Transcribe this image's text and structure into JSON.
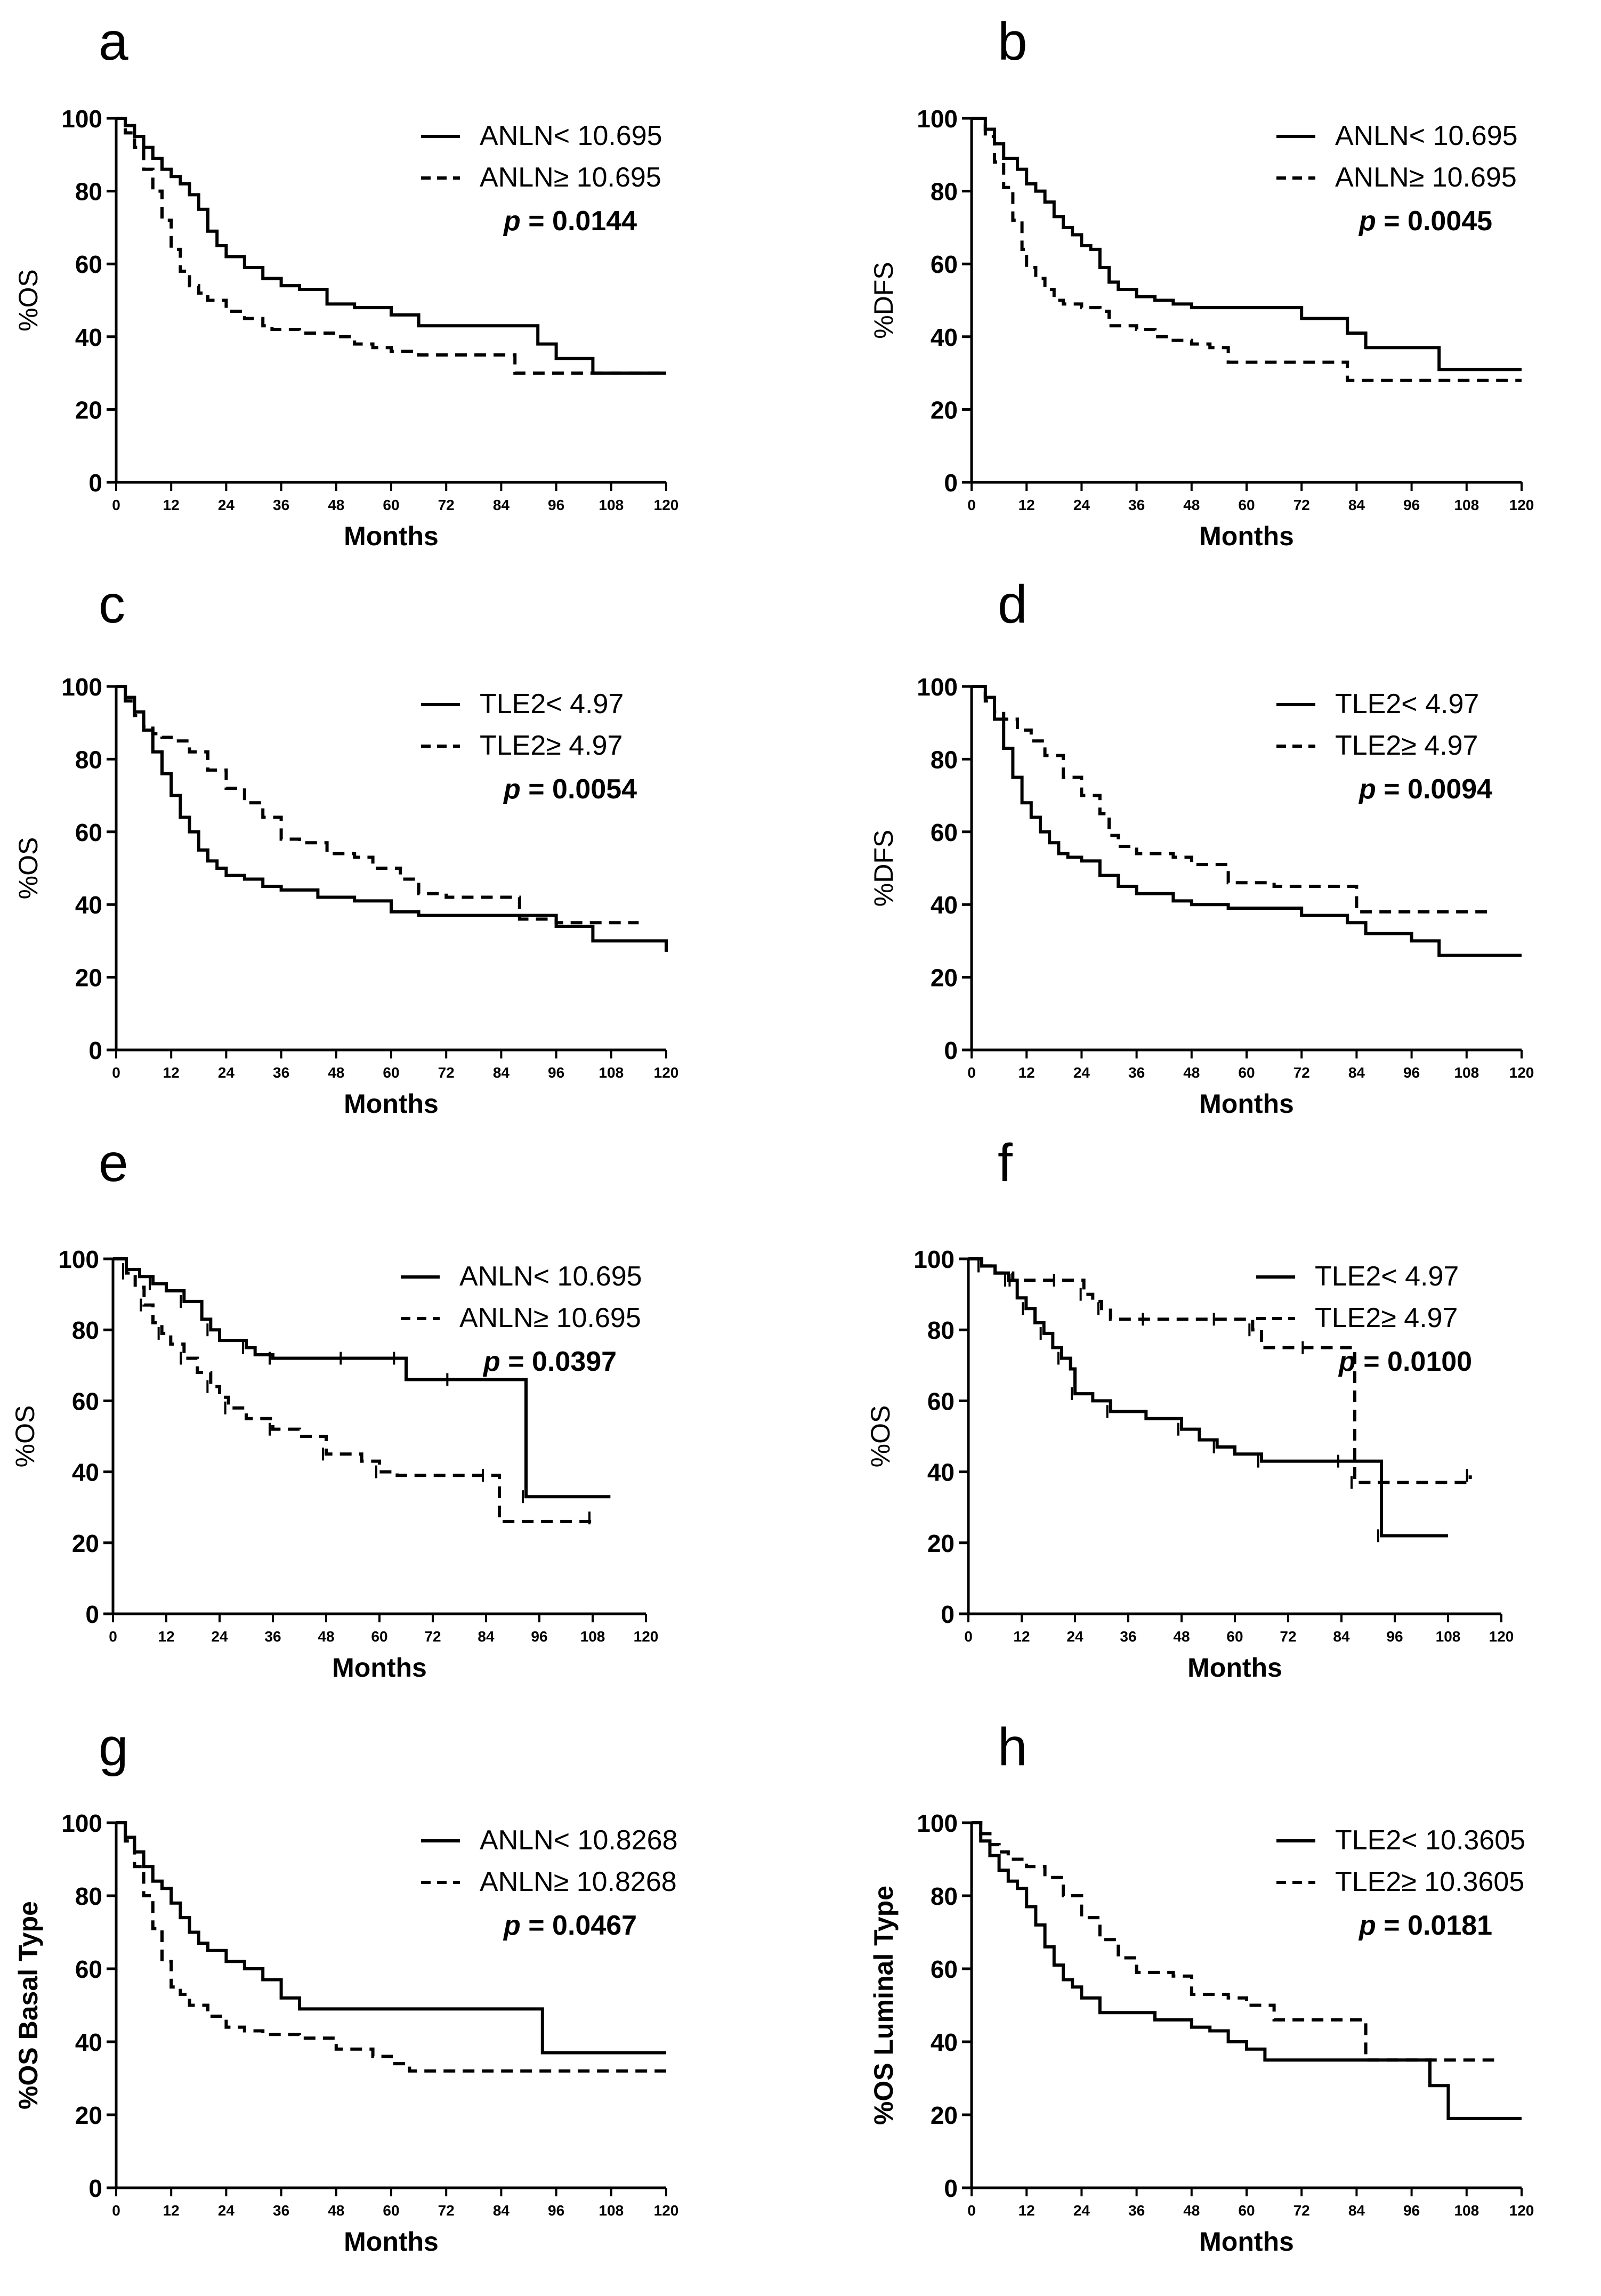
{
  "chart_data": [
    {
      "type": "line",
      "panel": "a",
      "title": "",
      "xlabel": "Months",
      "ylabel": "%OS",
      "ylabel_bold": false,
      "xlim": [
        0,
        120
      ],
      "ylim": [
        0,
        100
      ],
      "xticks": [
        "0",
        "12",
        "24",
        "36",
        "48",
        "60",
        "72",
        "84",
        "96",
        "108",
        "120"
      ],
      "yticks": [
        "0",
        "20",
        "40",
        "60",
        "80",
        "100"
      ],
      "pvalue": "= 0.0144",
      "censor_marks": false,
      "series": [
        {
          "name": "ANLN< 10.695",
          "style": "solid",
          "x": [
            0,
            2,
            4,
            6,
            8,
            10,
            12,
            14,
            16,
            18,
            20,
            22,
            24,
            28,
            32,
            36,
            40,
            46,
            52,
            60,
            66,
            92,
            96,
            104,
            120
          ],
          "y": [
            100,
            98,
            95,
            92,
            89,
            86,
            84,
            82,
            79,
            75,
            69,
            65,
            62,
            59,
            56,
            54,
            53,
            49,
            48,
            46,
            43,
            38,
            34,
            30,
            30
          ]
        },
        {
          "name": "ANLN≥ 10.695",
          "style": "dashed",
          "x": [
            0,
            2,
            4,
            6,
            8,
            10,
            12,
            14,
            16,
            18,
            20,
            24,
            28,
            32,
            34,
            40,
            48,
            52,
            56,
            60,
            66,
            72,
            80,
            87,
            120
          ],
          "y": [
            100,
            96,
            92,
            86,
            80,
            72,
            64,
            58,
            54,
            52,
            50,
            47,
            45,
            43,
            42,
            41,
            40,
            38,
            37,
            36,
            35,
            35,
            35,
            30,
            30
          ]
        }
      ]
    },
    {
      "type": "line",
      "panel": "b",
      "title": "",
      "xlabel": "Months",
      "ylabel": "%DFS",
      "ylabel_bold": false,
      "xlim": [
        0,
        120
      ],
      "ylim": [
        0,
        100
      ],
      "xticks": [
        "0",
        "12",
        "24",
        "36",
        "48",
        "60",
        "72",
        "84",
        "96",
        "108",
        "120"
      ],
      "yticks": [
        "0",
        "20",
        "40",
        "60",
        "80",
        "100"
      ],
      "pvalue": "= 0.0045",
      "censor_marks": false,
      "series": [
        {
          "name": "ANLN< 10.695",
          "style": "solid",
          "x": [
            0,
            3,
            5,
            7,
            10,
            12,
            14,
            16,
            18,
            20,
            22,
            24,
            26,
            28,
            30,
            32,
            36,
            40,
            44,
            48,
            58,
            66,
            72,
            82,
            86,
            96,
            102,
            120
          ],
          "y": [
            100,
            97,
            93,
            89,
            86,
            82,
            80,
            77,
            73,
            70,
            68,
            65,
            64,
            59,
            55,
            53,
            51,
            50,
            49,
            48,
            48,
            48,
            45,
            41,
            37,
            37,
            31,
            31
          ]
        },
        {
          "name": "ANLN≥ 10.695",
          "style": "dashed",
          "x": [
            0,
            3,
            5,
            7,
            9,
            11,
            12,
            14,
            16,
            18,
            20,
            24,
            28,
            30,
            36,
            40,
            44,
            48,
            52,
            56,
            66,
            72,
            82,
            120
          ],
          "y": [
            100,
            95,
            88,
            81,
            72,
            64,
            59,
            56,
            53,
            50,
            49,
            48,
            47,
            43,
            42,
            40,
            39,
            38,
            37,
            33,
            33,
            33,
            28,
            28
          ]
        }
      ]
    },
    {
      "type": "line",
      "panel": "c",
      "title": "",
      "xlabel": "Months",
      "ylabel": "%OS",
      "ylabel_bold": false,
      "xlim": [
        0,
        120
      ],
      "ylim": [
        0,
        100
      ],
      "xticks": [
        "0",
        "12",
        "24",
        "36",
        "48",
        "60",
        "72",
        "84",
        "96",
        "108",
        "120"
      ],
      "yticks": [
        "0",
        "20",
        "40",
        "60",
        "80",
        "100"
      ],
      "pvalue": "= 0.0054",
      "censor_marks": false,
      "series": [
        {
          "name": "TLE2< 4.97",
          "style": "solid",
          "x": [
            0,
            2,
            4,
            6,
            8,
            10,
            12,
            14,
            16,
            18,
            20,
            22,
            24,
            28,
            32,
            36,
            44,
            52,
            60,
            66,
            90,
            96,
            104,
            120
          ],
          "y": [
            100,
            97,
            93,
            88,
            82,
            76,
            70,
            64,
            60,
            55,
            52,
            50,
            48,
            47,
            45,
            44,
            42,
            41,
            38,
            37,
            37,
            34,
            30,
            27
          ]
        },
        {
          "name": "TLE2≥ 4.97",
          "style": "dashed",
          "x": [
            0,
            2,
            4,
            6,
            8,
            10,
            12,
            16,
            20,
            24,
            28,
            32,
            36,
            40,
            46,
            52,
            56,
            62,
            66,
            72,
            86,
            88,
            96,
            114
          ],
          "y": [
            100,
            96,
            92,
            89,
            87,
            86,
            85,
            82,
            77,
            72,
            68,
            64,
            58,
            57,
            54,
            53,
            50,
            47,
            43,
            42,
            42,
            36,
            35,
            35
          ]
        }
      ]
    },
    {
      "type": "line",
      "panel": "d",
      "title": "",
      "xlabel": "Months",
      "ylabel": "%DFS",
      "ylabel_bold": false,
      "xlim": [
        0,
        120
      ],
      "ylim": [
        0,
        100
      ],
      "xticks": [
        "0",
        "12",
        "24",
        "36",
        "48",
        "60",
        "72",
        "84",
        "96",
        "108",
        "120"
      ],
      "yticks": [
        "0",
        "20",
        "40",
        "60",
        "80",
        "100"
      ],
      "pvalue": "= 0.0094",
      "censor_marks": false,
      "series": [
        {
          "name": "TLE2< 4.97",
          "style": "solid",
          "x": [
            0,
            3,
            5,
            7,
            9,
            11,
            13,
            15,
            17,
            19,
            21,
            24,
            28,
            32,
            36,
            44,
            48,
            56,
            72,
            82,
            86,
            96,
            102,
            120
          ],
          "y": [
            100,
            97,
            91,
            83,
            75,
            68,
            64,
            60,
            57,
            54,
            53,
            52,
            48,
            45,
            43,
            41,
            40,
            39,
            37,
            35,
            32,
            30,
            26,
            26
          ]
        },
        {
          "name": "TLE2≥ 4.97",
          "style": "dashed",
          "x": [
            0,
            3,
            5,
            7,
            10,
            13,
            16,
            20,
            24,
            28,
            30,
            32,
            36,
            44,
            48,
            56,
            66,
            72,
            82,
            84,
            96,
            114
          ],
          "y": [
            100,
            96,
            93,
            91,
            88,
            85,
            81,
            75,
            70,
            65,
            59,
            56,
            54,
            53,
            51,
            46,
            45,
            45,
            45,
            38,
            38,
            38
          ]
        }
      ]
    },
    {
      "type": "line",
      "panel": "e",
      "title": "",
      "xlabel": "Months",
      "ylabel": "%OS",
      "ylabel_bold": false,
      "xlim": [
        0,
        120
      ],
      "ylim": [
        0,
        100
      ],
      "xticks": [
        "0",
        "12",
        "24",
        "36",
        "48",
        "60",
        "72",
        "84",
        "96",
        "108",
        "120"
      ],
      "yticks": [
        "0",
        "20",
        "40",
        "60",
        "80",
        "100"
      ],
      "pvalue": "= 0.0397",
      "censor_marks": true,
      "series": [
        {
          "name": "ANLN< 10.695",
          "style": "solid",
          "x": [
            0,
            3,
            6,
            9,
            12,
            16,
            20,
            22,
            24,
            30,
            32,
            36,
            44,
            52,
            60,
            64,
            66,
            76,
            92,
            93,
            112
          ],
          "y": [
            100,
            97,
            95,
            93,
            91,
            88,
            83,
            80,
            77,
            75,
            73,
            72,
            72,
            72,
            72,
            72,
            66,
            66,
            66,
            33,
            33
          ]
        },
        {
          "name": "ANLN≥ 10.695",
          "style": "dashed",
          "x": [
            0,
            3,
            5,
            7,
            9,
            11,
            13,
            16,
            19,
            22,
            24,
            26,
            30,
            36,
            42,
            48,
            56,
            60,
            64,
            84,
            87,
            108
          ],
          "y": [
            100,
            96,
            92,
            87,
            82,
            79,
            76,
            72,
            68,
            64,
            61,
            58,
            55,
            52,
            50,
            45,
            43,
            40,
            39,
            39,
            26,
            27
          ]
        }
      ]
    },
    {
      "type": "line",
      "panel": "f",
      "title": "",
      "xlabel": "Months",
      "ylabel": "%OS",
      "ylabel_bold": false,
      "xlim": [
        0,
        120
      ],
      "ylim": [
        0,
        100
      ],
      "xticks": [
        "0",
        "12",
        "24",
        "36",
        "48",
        "60",
        "72",
        "84",
        "96",
        "108",
        "120"
      ],
      "yticks": [
        "0",
        "20",
        "40",
        "60",
        "80",
        "100"
      ],
      "pvalue": "= 0.0100",
      "censor_marks": true,
      "series": [
        {
          "name": "TLE2< 4.97",
          "style": "solid",
          "x": [
            0,
            3,
            6,
            9,
            11,
            13,
            15,
            17,
            19,
            21,
            23,
            24,
            28,
            32,
            40,
            48,
            52,
            56,
            60,
            66,
            72,
            84,
            92,
            93,
            108
          ],
          "y": [
            100,
            98,
            96,
            94,
            89,
            86,
            82,
            79,
            75,
            72,
            69,
            62,
            60,
            57,
            55,
            52,
            49,
            47,
            45,
            43,
            43,
            43,
            43,
            22,
            22
          ]
        },
        {
          "name": "TLE2≥ 4.97",
          "style": "dashed",
          "x": [
            0,
            3,
            6,
            10,
            16,
            20,
            24,
            26,
            28,
            30,
            32,
            40,
            48,
            56,
            60,
            64,
            66,
            76,
            86,
            87,
            104,
            113
          ],
          "y": [
            100,
            98,
            96,
            94,
            94,
            94,
            94,
            90,
            88,
            86,
            83,
            83,
            83,
            83,
            83,
            80,
            75,
            75,
            75,
            37,
            37,
            39
          ]
        }
      ]
    },
    {
      "type": "line",
      "panel": "g",
      "title": "",
      "xlabel": "Months",
      "ylabel": "%OS Basal Type",
      "ylabel_bold": true,
      "xlim": [
        0,
        120
      ],
      "ylim": [
        0,
        100
      ],
      "xticks": [
        "0",
        "12",
        "24",
        "36",
        "48",
        "60",
        "72",
        "84",
        "96",
        "108",
        "120"
      ],
      "yticks": [
        "0",
        "20",
        "40",
        "60",
        "80",
        "100"
      ],
      "pvalue": "= 0.0467",
      "censor_marks": false,
      "series": [
        {
          "name": "ANLN< 10.8268",
          "style": "solid",
          "x": [
            0,
            2,
            4,
            6,
            8,
            10,
            12,
            14,
            16,
            18,
            20,
            24,
            28,
            32,
            36,
            40,
            48,
            60,
            72,
            84,
            93,
            120
          ],
          "y": [
            100,
            96,
            92,
            88,
            84,
            82,
            78,
            74,
            70,
            67,
            65,
            62,
            60,
            57,
            52,
            49,
            49,
            49,
            49,
            49,
            37,
            37
          ]
        },
        {
          "name": "ANLN≥ 10.8268",
          "style": "dashed",
          "x": [
            0,
            2,
            4,
            6,
            8,
            10,
            12,
            14,
            16,
            20,
            24,
            28,
            32,
            40,
            48,
            56,
            60,
            64,
            72,
            84,
            96,
            120
          ],
          "y": [
            100,
            95,
            88,
            80,
            71,
            62,
            55,
            53,
            50,
            47,
            44,
            43,
            42,
            41,
            38,
            36,
            34,
            32,
            32,
            32,
            32,
            32
          ]
        }
      ]
    },
    {
      "type": "line",
      "panel": "h",
      "title": "",
      "xlabel": "Months",
      "ylabel": "%OS Luminal Type",
      "ylabel_bold": true,
      "xlim": [
        0,
        120
      ],
      "ylim": [
        0,
        100
      ],
      "xticks": [
        "0",
        "12",
        "24",
        "36",
        "48",
        "60",
        "72",
        "84",
        "96",
        "108",
        "120"
      ],
      "yticks": [
        "0",
        "20",
        "40",
        "60",
        "80",
        "100"
      ],
      "pvalue": "= 0.0181",
      "censor_marks": false,
      "series": [
        {
          "name": "TLE2< 10.3605",
          "style": "solid",
          "x": [
            0,
            2,
            4,
            6,
            8,
            10,
            12,
            14,
            16,
            18,
            20,
            22,
            24,
            28,
            36,
            40,
            48,
            52,
            56,
            60,
            64,
            72,
            84,
            96,
            100,
            104,
            120
          ],
          "y": [
            100,
            95,
            91,
            87,
            84,
            82,
            77,
            72,
            66,
            61,
            57,
            55,
            52,
            48,
            48,
            46,
            44,
            43,
            40,
            38,
            35,
            35,
            35,
            35,
            28,
            19,
            19
          ]
        },
        {
          "name": "TLE2≥ 10.3605",
          "style": "dashed",
          "x": [
            0,
            2,
            4,
            6,
            8,
            12,
            16,
            20,
            24,
            28,
            32,
            36,
            44,
            48,
            56,
            60,
            66,
            72,
            84,
            86,
            96,
            114
          ],
          "y": [
            100,
            97,
            94,
            92,
            90,
            88,
            85,
            80,
            74,
            68,
            63,
            59,
            58,
            53,
            52,
            50,
            46,
            46,
            46,
            35,
            35,
            35
          ]
        }
      ]
    }
  ]
}
